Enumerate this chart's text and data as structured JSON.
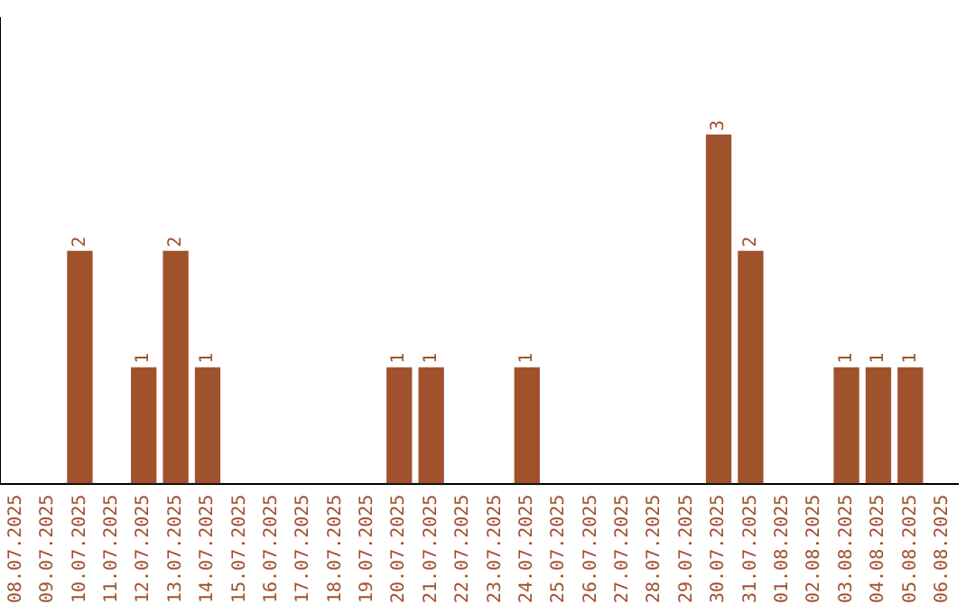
{
  "chart_data": {
    "type": "bar",
    "categories": [
      "08.07.2025",
      "09.07.2025",
      "10.07.2025",
      "11.07.2025",
      "12.07.2025",
      "13.07.2025",
      "14.07.2025",
      "15.07.2025",
      "16.07.2025",
      "17.07.2025",
      "18.07.2025",
      "19.07.2025",
      "20.07.2025",
      "21.07.2025",
      "22.07.2025",
      "23.07.2025",
      "24.07.2025",
      "25.07.2025",
      "26.07.2025",
      "27.07.2025",
      "28.07.2025",
      "29.07.2025",
      "30.07.2025",
      "31.07.2025",
      "01.08.2025",
      "02.08.2025",
      "03.08.2025",
      "04.08.2025",
      "05.08.2025",
      "06.08.2025"
    ],
    "values": [
      0,
      0,
      2,
      0,
      1,
      2,
      1,
      0,
      0,
      0,
      0,
      0,
      1,
      1,
      0,
      0,
      1,
      0,
      0,
      0,
      0,
      0,
      3,
      2,
      0,
      0,
      1,
      1,
      1,
      0
    ],
    "value_labels": [
      null,
      null,
      "2",
      null,
      "1",
      "2",
      "1",
      null,
      null,
      null,
      null,
      null,
      "1",
      "1",
      null,
      null,
      "1",
      null,
      null,
      null,
      null,
      null,
      "3",
      "2",
      null,
      null,
      "1",
      "1",
      "1",
      null
    ],
    "color": "#a0522d",
    "tick_labels": "x",
    "grid": false,
    "legend": false
  }
}
